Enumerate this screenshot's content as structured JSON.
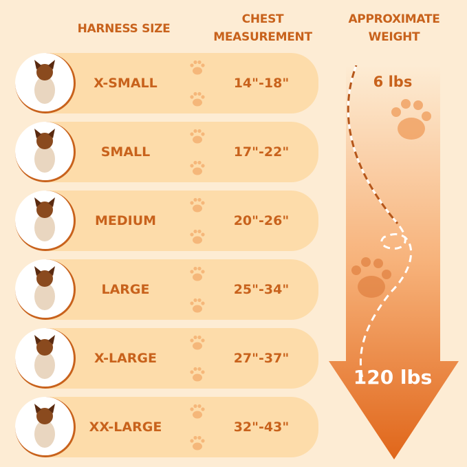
{
  "headers": {
    "size": "HARNESS SIZE",
    "chest_line1": "CHEST",
    "chest_line2": "MEASUREMENT",
    "weight_line1": "APPROXIMATE",
    "weight_line2": "WEIGHT"
  },
  "rows": [
    {
      "size": "X-SMALL",
      "chest": "14\"-18\""
    },
    {
      "size": "SMALL",
      "chest": "17\"-22\""
    },
    {
      "size": "MEDIUM",
      "chest": "20\"-26\""
    },
    {
      "size": "LARGE",
      "chest": "25\"-34\""
    },
    {
      "size": "X-LARGE",
      "chest": "27\"-37\""
    },
    {
      "size": "XX-LARGE",
      "chest": "32\"-43\""
    }
  ],
  "weight": {
    "min": "6 lbs",
    "max": "120 lbs"
  },
  "colors": {
    "accent": "#c8621c",
    "background": "#fdecd4",
    "row": "#fddcaa",
    "arrow_bottom": "#e0661a"
  },
  "icons": [
    "dog-photo",
    "paw-icon",
    "arrow-down"
  ]
}
